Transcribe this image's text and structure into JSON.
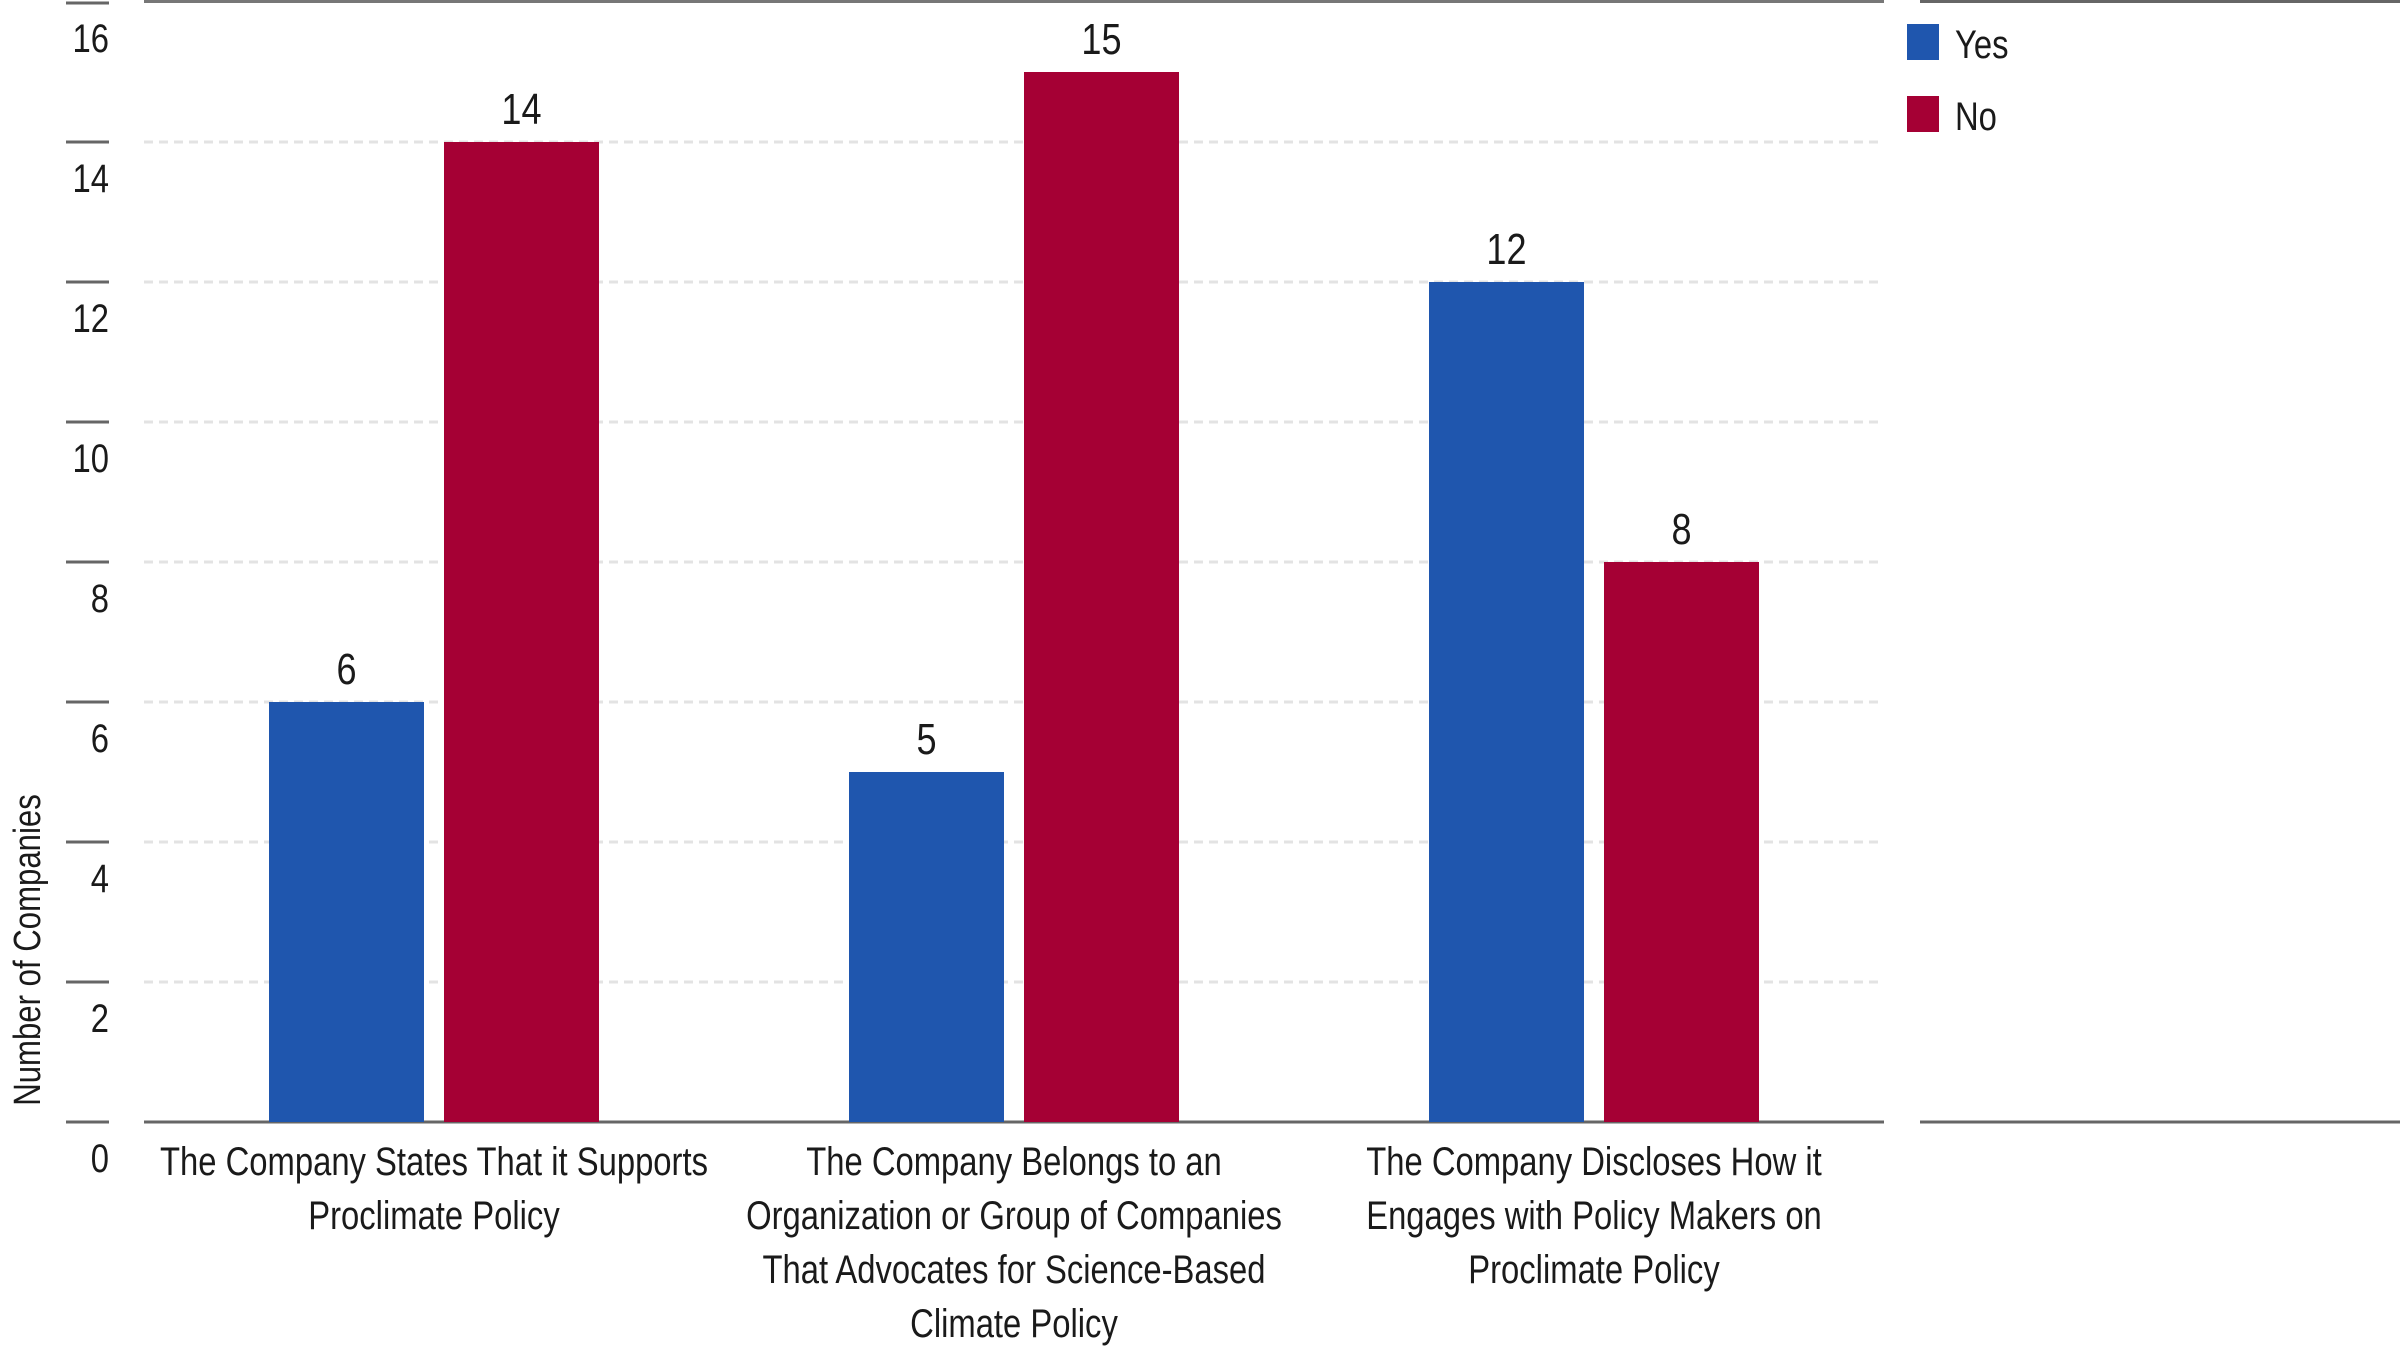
{
  "chart_data": {
    "type": "bar",
    "title": "",
    "xlabel": "",
    "ylabel": "Number of Companies",
    "ylim": [
      0,
      16
    ],
    "yticks": [
      0,
      2,
      4,
      6,
      8,
      10,
      12,
      14,
      16
    ],
    "grid": true,
    "legend_placement": "right-top",
    "categories": [
      [
        "The Company States That it Supports",
        "Proclimate Policy"
      ],
      [
        "The Company Belongs to an",
        "Organization or Group of Companies",
        "That Advocates for Science-Based",
        "Climate Policy"
      ],
      [
        "The Company Discloses How it",
        "Engages with Policy Makers on",
        "Proclimate Policy"
      ]
    ],
    "series": [
      {
        "name": "Yes",
        "color": "#1f56ae",
        "values": [
          6,
          5,
          12
        ]
      },
      {
        "name": "No",
        "color": "#a50034",
        "values": [
          14,
          15,
          8
        ]
      }
    ]
  }
}
